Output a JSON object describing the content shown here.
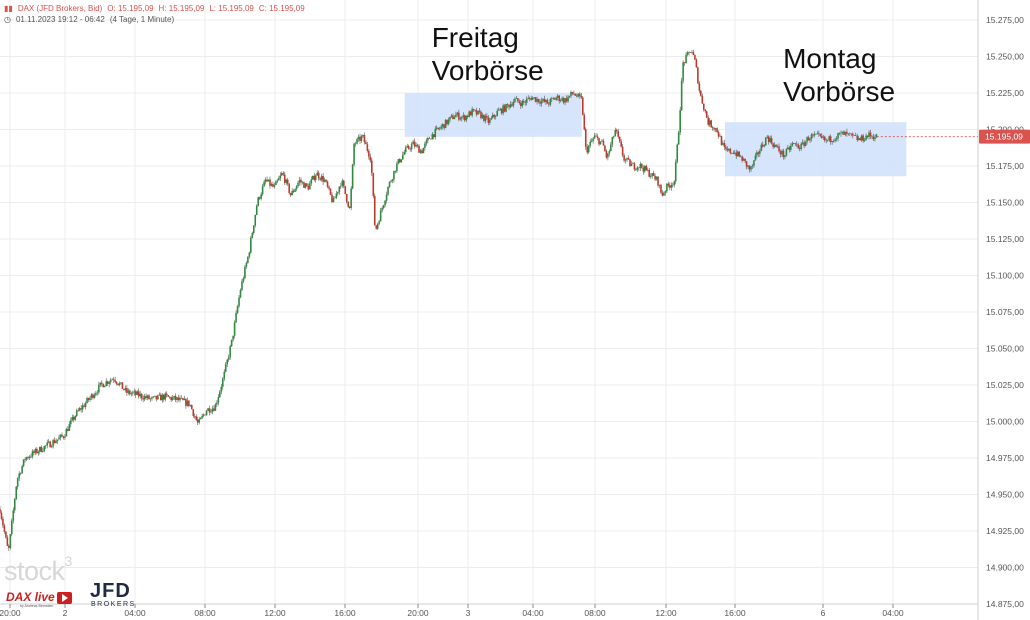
{
  "header": {
    "instrument": "DAX (JFD Brokers, Bid)",
    "open": "O: 15.195,09",
    "high": "H: 15.195,09",
    "low": "L: 15.195,09",
    "close": "C: 15.195,09",
    "datetime": "01.11.2023 19:12 - 06:42",
    "period": "(4 Tage, 1 Minute)"
  },
  "logos": {
    "stock3": "stock",
    "stock3_sup": "3",
    "dax_live": "DAX live",
    "dax_live_sub": "by Andreas Bernstein",
    "jfd": "JFD",
    "jfd_sub": "BROKERS"
  },
  "colors": {
    "up": "#2e8b3e",
    "down": "#c0392b",
    "wick": "#555555",
    "highlight": "#cfe0fb",
    "price_badge": "#d9534f",
    "grid": "#ececec"
  },
  "chart_data": {
    "type": "candlestick",
    "y_axis": {
      "min": 14875,
      "max": 15275,
      "ticks": [
        14875,
        14900,
        14925,
        14950,
        14975,
        15000,
        15025,
        15050,
        15075,
        15100,
        15125,
        15150,
        15175,
        15200,
        15225,
        15250,
        15275
      ],
      "tick_labels": [
        "14.875,00",
        "14.900,00",
        "14.925,00",
        "14.950,00",
        "14.975,00",
        "15.000,00",
        "15.025,00",
        "15.050,00",
        "15.075,00",
        "15.100,00",
        "15.125,00",
        "15.150,00",
        "15.175,00",
        "15.200,00",
        "15.225,00",
        "15.250,00",
        "15.275,00"
      ]
    },
    "x_axis": {
      "tick_labels": [
        "20:00",
        "2",
        "04:00",
        "08:00",
        "12:00",
        "16:00",
        "20:00",
        "3",
        "04:00",
        "08:00",
        "12:00",
        "16:00",
        "6",
        "04:00"
      ]
    },
    "current_price": 15195.09,
    "current_price_label": "15.195,09",
    "price_path": [
      [
        0,
        14940
      ],
      [
        2,
        14910
      ],
      [
        4,
        14960
      ],
      [
        6,
        14975
      ],
      [
        9,
        14980
      ],
      [
        12,
        14985
      ],
      [
        15,
        14990
      ],
      [
        18,
        15005
      ],
      [
        21,
        15015
      ],
      [
        24,
        15025
      ],
      [
        27,
        15030
      ],
      [
        30,
        15020
      ],
      [
        33,
        15018
      ],
      [
        36,
        15015
      ],
      [
        39,
        15017
      ],
      [
        42,
        15015
      ],
      [
        45,
        15012
      ],
      [
        47,
        14998
      ],
      [
        49,
        15008
      ],
      [
        51,
        15010
      ],
      [
        53,
        15030
      ],
      [
        55,
        15055
      ],
      [
        57,
        15090
      ],
      [
        59,
        15115
      ],
      [
        61,
        15150
      ],
      [
        63,
        15165
      ],
      [
        65,
        15160
      ],
      [
        67,
        15170
      ],
      [
        69,
        15155
      ],
      [
        71,
        15165
      ],
      [
        73,
        15160
      ],
      [
        75,
        15170
      ],
      [
        77,
        15165
      ],
      [
        79,
        15150
      ],
      [
        81,
        15165
      ],
      [
        83,
        15145
      ],
      [
        84,
        15190
      ],
      [
        86,
        15195
      ],
      [
        88,
        15180
      ],
      [
        89,
        15130
      ],
      [
        90,
        15140
      ],
      [
        92,
        15160
      ],
      [
        94,
        15175
      ],
      [
        96,
        15185
      ],
      [
        98,
        15190
      ],
      [
        100,
        15185
      ],
      [
        102,
        15195
      ],
      [
        104,
        15200
      ],
      [
        106,
        15205
      ],
      [
        108,
        15210
      ],
      [
        110,
        15208
      ],
      [
        112,
        15212
      ],
      [
        114,
        15210
      ],
      [
        116,
        15205
      ],
      [
        118,
        15212
      ],
      [
        120,
        15215
      ],
      [
        122,
        15220
      ],
      [
        124,
        15218
      ],
      [
        126,
        15222
      ],
      [
        128,
        15220
      ],
      [
        130,
        15218
      ],
      [
        132,
        15222
      ],
      [
        134,
        15220
      ],
      [
        136,
        15225
      ],
      [
        138,
        15220
      ],
      [
        139,
        15185
      ],
      [
        141,
        15195
      ],
      [
        143,
        15190
      ],
      [
        144,
        15180
      ],
      [
        146,
        15200
      ],
      [
        148,
        15180
      ],
      [
        150,
        15175
      ],
      [
        152,
        15175
      ],
      [
        154,
        15170
      ],
      [
        156,
        15165
      ],
      [
        157,
        15155
      ],
      [
        158,
        15160
      ],
      [
        160,
        15165
      ],
      [
        161,
        15200
      ],
      [
        162,
        15245
      ],
      [
        164,
        15255
      ],
      [
        165,
        15245
      ],
      [
        166,
        15225
      ],
      [
        168,
        15205
      ],
      [
        170,
        15200
      ],
      [
        172,
        15185
      ],
      [
        174,
        15185
      ],
      [
        176,
        15180
      ],
      [
        178,
        15172
      ],
      [
        180,
        15185
      ],
      [
        182,
        15195
      ],
      [
        184,
        15188
      ],
      [
        186,
        15182
      ],
      [
        188,
        15190
      ],
      [
        190,
        15188
      ],
      [
        192,
        15195
      ],
      [
        194,
        15195
      ],
      [
        196,
        15192
      ],
      [
        198,
        15195
      ],
      [
        200,
        15197
      ],
      [
        202,
        15195
      ],
      [
        204,
        15193
      ],
      [
        206,
        15196
      ],
      [
        208,
        15195
      ]
    ],
    "annotations": [
      {
        "line1": "Freitag",
        "line2": "Vorbörse",
        "x_start": 96,
        "x_end": 138,
        "y_low": 15195,
        "y_high": 15225
      },
      {
        "line1": "Montag",
        "line2": "Vorbörse",
        "x_start": 172,
        "x_end": 215,
        "y_low": 15168,
        "y_high": 15205
      }
    ]
  }
}
